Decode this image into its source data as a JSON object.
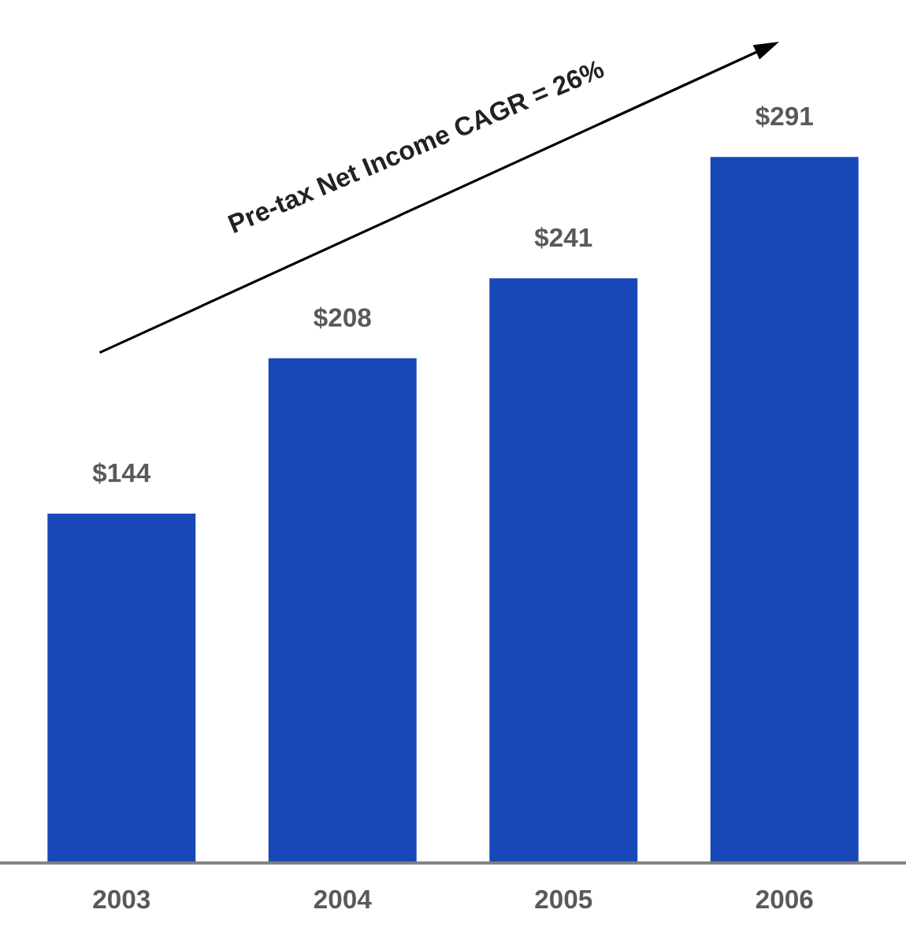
{
  "chart_data": {
    "type": "bar",
    "categories": [
      "2003",
      "2004",
      "2005",
      "2006"
    ],
    "values": [
      144,
      208,
      241,
      291
    ],
    "color": "#1848b8",
    "value_labels": [
      "$144",
      "$208",
      "$241",
      "$291"
    ],
    "annotations": [
      "Pre-tax Net Income CAGR = 26%"
    ],
    "grid": false,
    "legend": false
  }
}
